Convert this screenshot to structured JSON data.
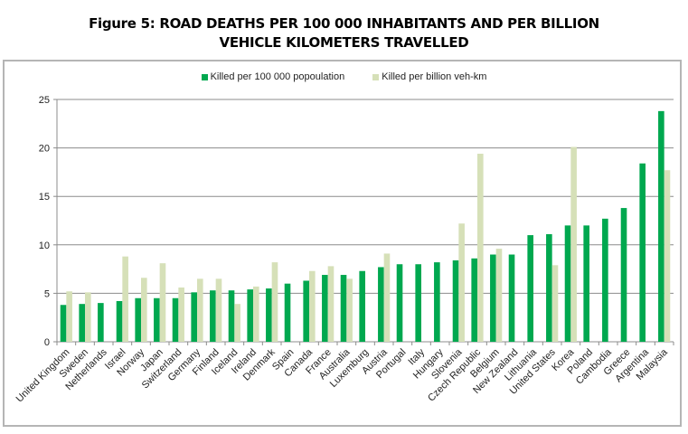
{
  "figure": {
    "title_line1": "Figure 5:  ROAD DEATHS PER 100 000 INHABITANTS AND PER BILLION",
    "title_line2": "VEHICLE KILOMETERS TRAVELLED"
  },
  "colors": {
    "series1": "#00a84f",
    "series2": "#d6e0b8",
    "grid": "#8c8c8c",
    "axis": "#8c8c8c"
  },
  "chart_data": {
    "type": "bar",
    "title": "Figure 5: ROAD DEATHS PER 100 000 INHABITANTS AND PER BILLION VEHICLE KILOMETERS TRAVELLED",
    "xlabel": "",
    "ylabel": "",
    "ylim": [
      0,
      25
    ],
    "yticks": [
      0,
      5,
      10,
      15,
      20,
      25
    ],
    "grid": true,
    "legend_position": "top-center",
    "categories": [
      "United Kingdom",
      "Sweden",
      "Netherlands",
      "Israel",
      "Norway",
      "Japan",
      "Switzerland",
      "Germany",
      "Finland",
      "Iceland",
      "Ireland",
      "Denmark",
      "Spain",
      "Canada",
      "France",
      "Australia",
      "Luxemburg",
      "Austria",
      "Portugal",
      "Italy",
      "Hungary",
      "Slovenia",
      "Czech Republic",
      "Belgium",
      "New Zealand",
      "Lithuania",
      "United States",
      "Korea",
      "Poland",
      "Cambodia",
      "Greece",
      "Argentina",
      "Malaysia"
    ],
    "series": [
      {
        "name": "Killed per 100 000 popoulation",
        "values": [
          3.8,
          3.9,
          4.0,
          4.2,
          4.5,
          4.5,
          4.5,
          5.1,
          5.3,
          5.3,
          5.4,
          5.5,
          6.0,
          6.3,
          6.9,
          6.9,
          7.3,
          7.7,
          8.0,
          8.0,
          8.2,
          8.4,
          8.6,
          9.0,
          9.0,
          11.0,
          11.1,
          12.0,
          12.0,
          12.7,
          13.8,
          18.4,
          23.8
        ]
      },
      {
        "name": "Killed per billion veh-km",
        "values": [
          5.2,
          5.1,
          null,
          8.8,
          6.6,
          8.1,
          5.6,
          6.5,
          6.5,
          3.9,
          5.7,
          8.2,
          null,
          7.3,
          7.8,
          6.5,
          null,
          9.1,
          null,
          null,
          null,
          12.2,
          19.4,
          9.6,
          null,
          null,
          7.9,
          20.1,
          null,
          null,
          null,
          null,
          17.7
        ]
      }
    ]
  }
}
